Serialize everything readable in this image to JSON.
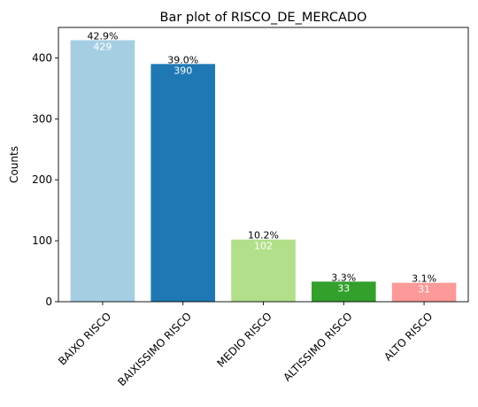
{
  "chart_data": {
    "type": "bar",
    "title": "Bar plot of RISCO_DE_MERCADO",
    "xlabel": "",
    "ylabel": "Counts",
    "categories": [
      "BAIXO RISCO",
      "BAIXISSIMO RISCO",
      "MEDIO RISCO",
      "ALTISSIMO RISCO",
      "ALTO RISCO"
    ],
    "values": [
      429,
      390,
      102,
      33,
      31
    ],
    "count_labels": [
      "429",
      "390",
      "102",
      "33",
      "31"
    ],
    "percent_labels": [
      "42.9%",
      "39.0%",
      "10.2%",
      "3.3%",
      "3.1%"
    ],
    "colors": [
      "#a6cee3",
      "#1f78b4",
      "#b2df8a",
      "#33a02c",
      "#fb9a99"
    ],
    "ylim": [
      0,
      450
    ],
    "yticks": [
      0,
      100,
      200,
      300,
      400
    ],
    "ytick_labels": [
      "0",
      "100",
      "200",
      "300",
      "400"
    ],
    "grid": false,
    "legend": "none"
  }
}
